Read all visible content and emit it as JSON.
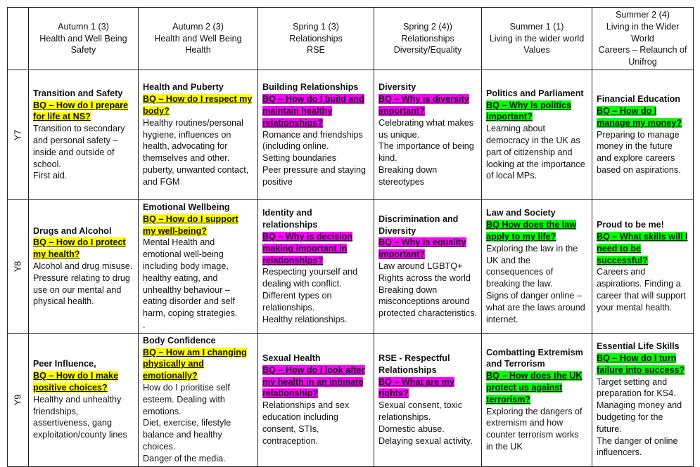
{
  "colors": {
    "yellow": "#ffff00",
    "magenta": "#ff00ff",
    "green": "#00ff00"
  },
  "headers": [
    [
      "Autumn 1 (3)",
      "Health and Well Being",
      "Safety"
    ],
    [
      "Autumn 2 (3)",
      "Health and Well Being",
      "Health"
    ],
    [
      "Spring 1 (3)",
      "Relationships",
      "RSE"
    ],
    [
      "Spring  2  (4))",
      "Relationships",
      "Diversity/Equality"
    ],
    [
      "Summer 1 (1)",
      "Living in the wider world",
      "Values"
    ],
    [
      "Summer 2 (4)",
      "Living in the Wider World",
      "Careers – Relaunch of Unifrog"
    ]
  ],
  "rows": [
    {
      "year": "Y7",
      "cells": [
        {
          "title": "Transition and Safety",
          "bq": "BQ – How do I prepare for life at NS?",
          "color": "#ffff00",
          "lines": [
            "Transition to secondary and personal safety – inside and outside of school.",
            "First aid."
          ]
        },
        {
          "title": "Health and Puberty",
          "bq": "BQ – How do I respect my body?",
          "color": "#ffff00",
          "lines": [
            "Healthy routines/personal hygiene, influences on health, advocating for themselves and other.",
            "puberty, unwanted contact, and FGM"
          ]
        },
        {
          "title": "Building Relationships",
          "bq": "BQ – How do I build and maintain healthy relationships?",
          "color": "#ff00ff",
          "lines": [
            "Romance and friendships (including online.",
            "Setting boundaries",
            "Peer pressure and staying positive"
          ]
        },
        {
          "title": "Diversity",
          "bq": "BQ – Why is diversity important?",
          "color": "#ff00ff",
          "lines": [
            "Celebrating what makes us unique.",
            "The importance of being kind.",
            "Breaking down stereotypes"
          ]
        },
        {
          "title": "Politics and Parliament",
          "bq": "BQ – Why is politics important?",
          "color": "#00ff00",
          "lines": [
            "Learning about democracy in the UK as part of citizenship and looking at the importance of local MPs."
          ]
        },
        {
          "title": "Financial Education",
          "bq": "BQ – How do I manage my money?",
          "color": "#00ff00",
          "lines": [
            "Preparing to manage money in the future and explore careers based on aspirations."
          ]
        }
      ]
    },
    {
      "year": "Y8",
      "cells": [
        {
          "title": "Drugs and Alcohol",
          "bq": "BQ – How do I protect my health?",
          "color": "#ffff00",
          "lines": [
            "Alcohol and drug misuse.",
            "Pressure relating to drug use on our mental and physical health."
          ]
        },
        {
          "title": "Emotional Wellbeing",
          "bq": "BQ – How do I support my well-being?",
          "color": "#ffff00",
          "lines": [
            "Mental Health and emotional well-being including body image, healthy eating, and unhealthy behaviour – eating disorder and self harm, coping strategies.",
            "."
          ]
        },
        {
          "title": "Identity and relationships",
          "bq": "BQ – Why is decision making important in relationships?",
          "color": "#ff00ff",
          "lines": [
            "Respecting yourself and dealing with conflict.",
            "Different types on relationships.",
            "Healthy relationships."
          ]
        },
        {
          "title": "Discrimination and Diversity",
          "bq": "BQ – Why is equality important?",
          "color": "#ff00ff",
          "lines": [
            "Law around LGBTQ+ Rights across the world",
            "Breaking down misconceptions around protected characteristics."
          ]
        },
        {
          "title": "Law and Society",
          "bq": "BQ How does the law apply to my life?",
          "color": "#00ff00",
          "lines": [
            "Exploring the law in the UK and the consequences of breaking the law.",
            "Signs of danger online – what are the laws around internet."
          ]
        },
        {
          "title": "Proud to be me!",
          "bq": "BQ – What skills will I need to be successful?",
          "color": "#00ff00",
          "lines": [
            "Careers and aspirations. Finding a career that will support your mental health."
          ]
        }
      ]
    },
    {
      "year": "Y9",
      "cells": [
        {
          "title": "Peer Influence,",
          "bq": "BQ – How do I make positive choices?",
          "color": "#ffff00",
          "lines": [
            "Healthy and unhealthy friendships, assertiveness, gang exploitation/county lines"
          ]
        },
        {
          "title": "Body Confidence",
          "bq": "BQ – How am I changing physically and emotionally?",
          "color": "#ffff00",
          "lines": [
            "How do I prioritise self esteem. Dealing with emotions.",
            "Diet, exercise, lifestyle balance and healthy choices.",
            "Danger of the media."
          ]
        },
        {
          "title": "Sexual Health",
          "bq": "BQ – How do I look after my health in an intimate relationship?",
          "color": "#ff00ff",
          "lines": [
            "Relationships and sex education including consent, STIs, contraception."
          ]
        },
        {
          "title": "RSE - Respectful Relationships",
          "bq": "BQ – What are my rights?",
          "color": "#ff00ff",
          "lines": [
            "Sexual consent, toxic relationships.",
            "Domestic abuse.",
            "Delaying sexual activity."
          ]
        },
        {
          "title": "Combatting Extremism and Terrorism",
          "bq": "BQ – How does the UK protect us against terrorism?",
          "color": "#00ff00",
          "lines": [
            "Exploring the dangers of extremism and how counter terrorism works in the UK"
          ]
        },
        {
          "title": "Essential Life Skills",
          "bq": "BQ – How do I turn failure into success?",
          "color": "#00ff00",
          "lines": [
            "Target setting and preparation for KS4.",
            "Managing money and budgeting for the future.",
            "The danger of online influencers."
          ]
        }
      ]
    }
  ]
}
